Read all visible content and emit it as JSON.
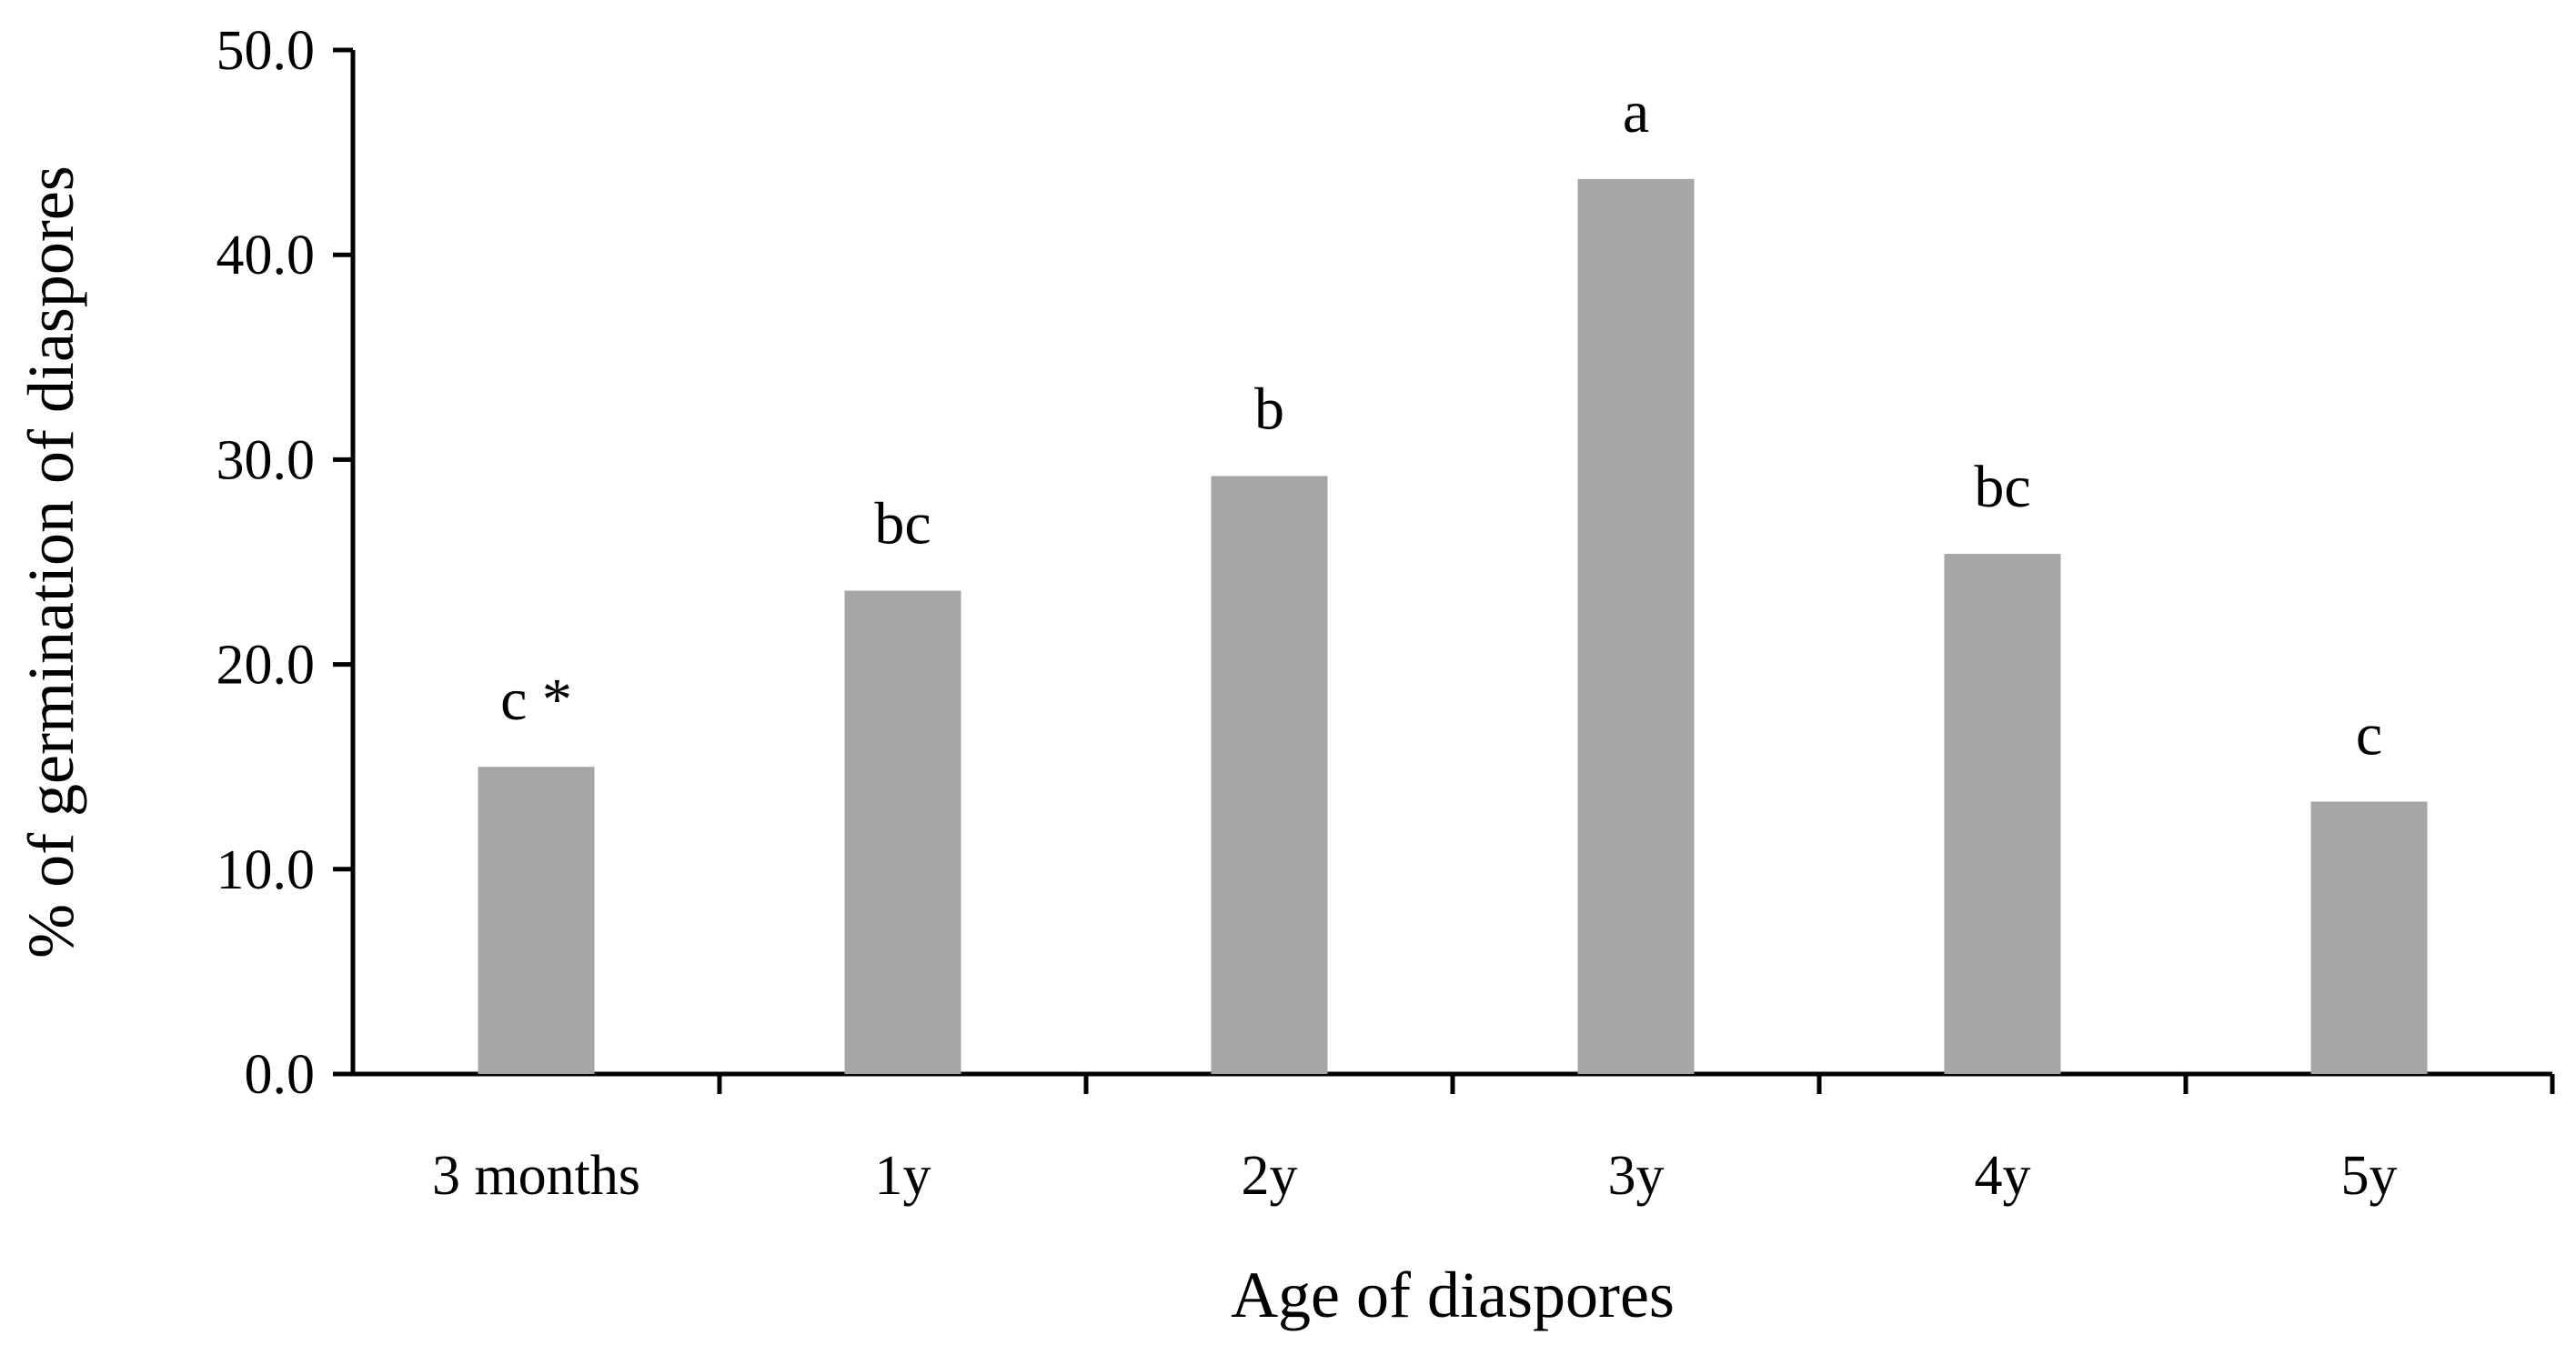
{
  "chart_data": {
    "type": "bar",
    "categories": [
      "3 months",
      "1y",
      "2y",
      "3y",
      "4y",
      "5y"
    ],
    "values": [
      15.0,
      23.6,
      29.2,
      43.7,
      25.4,
      13.3
    ],
    "data_labels": [
      "c *",
      "bc",
      "b",
      "a",
      "bc",
      "c"
    ],
    "xlabel": "Age of diaspores",
    "ylabel": "% of germination of diaspores",
    "ylim": [
      0,
      50
    ],
    "yticks": [
      "0.0",
      "10.0",
      "20.0",
      "30.0",
      "40.0",
      "50.0"
    ],
    "grid": false,
    "legend": "none",
    "colors": {
      "bar": "#a6a6a6",
      "axis": "#000000"
    }
  }
}
